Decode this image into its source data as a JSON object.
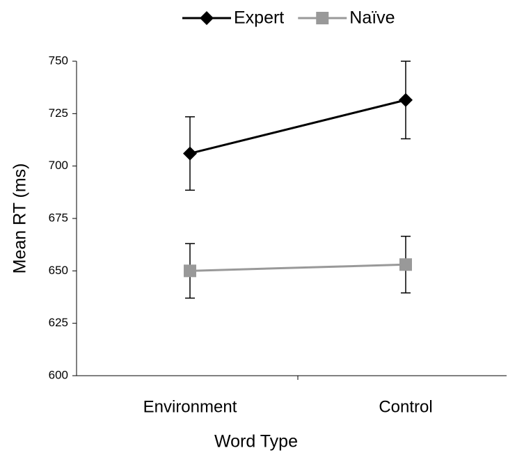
{
  "chart_data": {
    "type": "line",
    "x_label": "Word Type",
    "y_label": "Mean RT (ms)",
    "categories": [
      "Environment",
      "Control"
    ],
    "series": [
      {
        "name": "Expert",
        "color": "#000000",
        "marker": "diamond",
        "values": [
          706,
          731.5
        ],
        "errors": [
          17.5,
          18.5
        ]
      },
      {
        "name": "Naïve",
        "color": "#999999",
        "marker": "square",
        "values": [
          650,
          653
        ],
        "errors": [
          13,
          13.5
        ]
      }
    ],
    "ylim": [
      600,
      750
    ],
    "yticks": [
      600,
      625,
      650,
      675,
      700,
      725,
      750
    ],
    "legend": "top",
    "grid": false
  }
}
